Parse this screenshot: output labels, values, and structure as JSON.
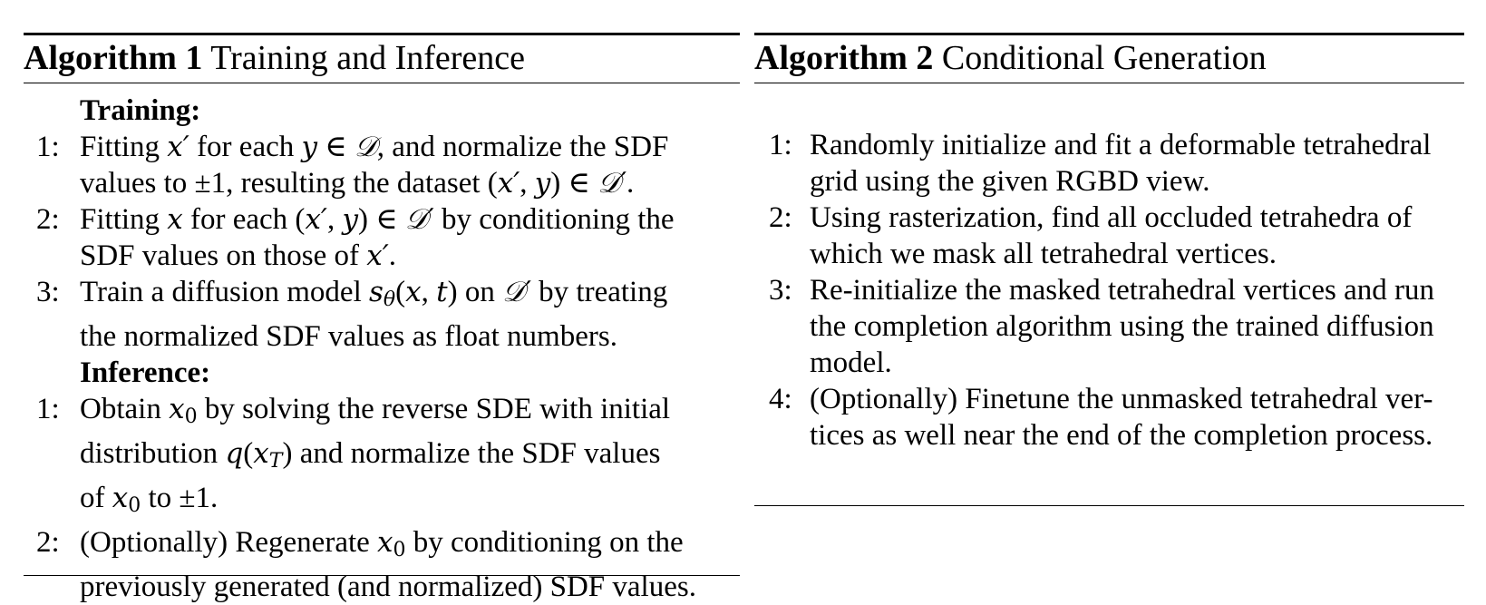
{
  "algorithm1": {
    "label": "Algorithm 1",
    "title": "Training and Inference",
    "training_heading": "Training:",
    "inference_heading": "Inference:",
    "training_steps": [
      {
        "num": "1:",
        "lines": [
          "Fitting x′ for each y ∈ 𝒟, and normalize the SDF",
          "values to ±1, resulting the dataset (x′, y) ∈ 𝒟′."
        ]
      },
      {
        "num": "2:",
        "lines": [
          "Fitting x for each (x′, y) ∈ 𝒟′ by conditioning the",
          "SDF values on those of x′."
        ]
      },
      {
        "num": "3:",
        "lines": [
          "Train a diffusion model sθ(x, t) on 𝒟′ by treating",
          "the normalized SDF values as float numbers."
        ]
      }
    ],
    "inference_steps": [
      {
        "num": "1:",
        "lines": [
          "Obtain x0 by solving the reverse SDE with initial",
          "distribution q(xT) and normalize the SDF values",
          "of x0 to ±1."
        ]
      },
      {
        "num": "2:",
        "lines": [
          "(Optionally) Regenerate x0 by conditioning on the",
          "previously generated (and normalized) SDF values."
        ]
      }
    ]
  },
  "algorithm2": {
    "label": "Algorithm 2",
    "title": "Conditional Generation",
    "steps": [
      {
        "num": "1:",
        "lines": [
          "Randomly initialize and fit a deformable tetrahedral",
          "grid using the given RGBD view."
        ]
      },
      {
        "num": "2:",
        "lines": [
          "Using rasterization, find all occluded tetrahedra of",
          "which we mask all tetrahedral vertices."
        ]
      },
      {
        "num": "3:",
        "lines": [
          "Re-initialize the masked tetrahedral vertices and run",
          "the completion algorithm using the trained diffusion",
          "model."
        ]
      },
      {
        "num": "4:",
        "lines": [
          "(Optionally) Finetune the unmasked tetrahedral ver-",
          "tices as well near the end of the completion process."
        ]
      }
    ]
  }
}
